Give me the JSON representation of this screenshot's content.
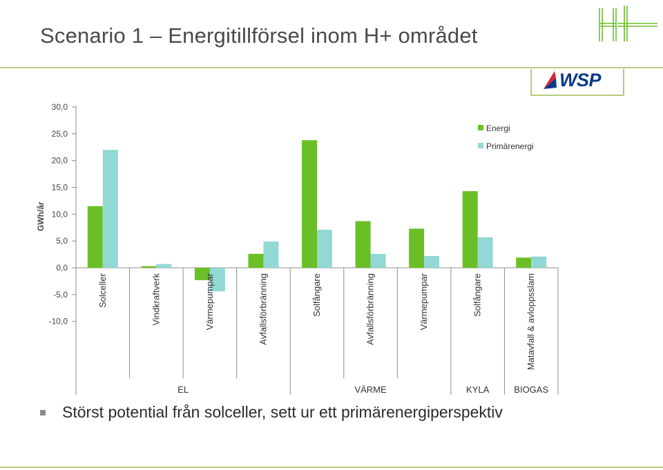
{
  "slide": {
    "title": "Scenario 1 – Energitillförsel inom H+ området",
    "bullet": "Störst potential från solceller, sett ur ett primärenergiperspektiv",
    "logo_wsp_text": "WSP",
    "logo_hplus_text": "H+"
  },
  "colors": {
    "accent": "#b5cc7a",
    "energi": "#6bbf26",
    "primarenergi": "#92d8d4",
    "wsp_blue": "#0a3a86",
    "wsp_red": "#d92432"
  },
  "chart_data": {
    "type": "bar",
    "title": "",
    "xlabel": "",
    "ylabel": "GWh/år",
    "ylim": [
      -10,
      30
    ],
    "yticks": [
      30,
      25,
      20,
      15,
      10,
      5,
      0,
      -5,
      -10
    ],
    "ytick_labels": [
      "30,0",
      "25,0",
      "20,0",
      "15,0",
      "10,0",
      "5,0",
      "0,0",
      "-5,0",
      "-10,0"
    ],
    "legend_position": "top-right",
    "categories": [
      "Solceller",
      "Vindkraftverk",
      "Värmepumpar",
      "Avfallsförbränning",
      "Solfångare",
      "Avfallsförbränning",
      "Värmepumpar",
      "Solfångare",
      "Matavfall & avloppsslam"
    ],
    "groups": [
      {
        "label": "EL",
        "start": 0,
        "end": 3
      },
      {
        "label": "VÄRME",
        "start": 4,
        "end": 6
      },
      {
        "label": "KYLA",
        "start": 7,
        "end": 7
      },
      {
        "label": "BIOGAS",
        "start": 8,
        "end": 8
      }
    ],
    "series": [
      {
        "name": "Energi",
        "color": "#6bbf26",
        "values": [
          11.5,
          0.3,
          -2.3,
          2.6,
          23.8,
          8.7,
          7.3,
          14.3,
          1.9
        ]
      },
      {
        "name": "Primärenergi",
        "color": "#92d8d4",
        "values": [
          22.0,
          0.7,
          -4.4,
          4.9,
          7.1,
          2.6,
          2.2,
          5.7,
          2.1
        ]
      }
    ]
  }
}
